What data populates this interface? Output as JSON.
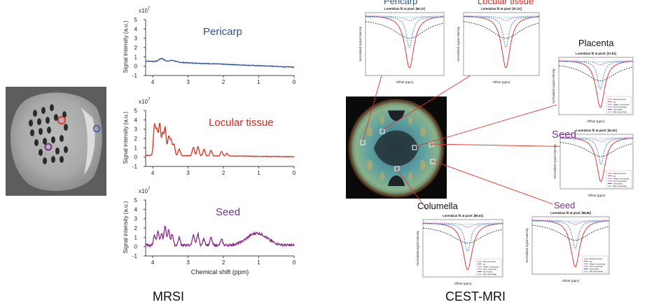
{
  "mrsi": {
    "caption": "MRSI",
    "image_markers": {
      "red": "#e8342c",
      "blue": "#3256a8",
      "purple": "#7a2f8f"
    },
    "spectra": [
      {
        "key": "pericarp",
        "label": "Pericarp",
        "color": "#2c4ea0",
        "label_color": "#2e5190",
        "ylabel": "Signal intensity (a.u.)",
        "exponent": "x10",
        "exponent_power": "7",
        "yticks": [
          "5",
          "4",
          "3",
          "2",
          "1",
          "0",
          "-1"
        ],
        "xticks": [
          "4",
          "3",
          "2",
          "1",
          "0"
        ]
      },
      {
        "key": "locular",
        "label": "Locular tissue",
        "color": "#e32b1e",
        "label_color": "#e3231a",
        "ylabel": "Signal intensity (a.u.)",
        "exponent": "x10",
        "exponent_power": "7",
        "yticks": [
          "5",
          "4",
          "3",
          "2",
          "1",
          "0",
          "-1"
        ],
        "xticks": [
          "4",
          "3",
          "2",
          "1",
          "0"
        ]
      },
      {
        "key": "seed",
        "label": "Seed",
        "color": "#8e2a8c",
        "label_color": "#7d2f93",
        "ylabel": "Signal intensity (a.u.)",
        "exponent": "x10",
        "exponent_power": "7",
        "yticks": [
          "5",
          "4",
          "3",
          "2",
          "1",
          "0",
          "-1"
        ],
        "xticks": [
          "4",
          "3",
          "2",
          "1",
          "0"
        ],
        "xlabel": "Chemical shift (ppm)"
      }
    ]
  },
  "cest": {
    "caption": "CEST-MRI",
    "region_labels": {
      "pericarp": "Pericarp",
      "locular": "Locular tissue",
      "placenta": "Placenta",
      "seed_right": "Seed",
      "columella": "Columella",
      "seed_bottom": "Seed"
    },
    "region_label_colors": {
      "pericarp": "#2e5190",
      "locular": "#e3231a",
      "placenta": "#111111",
      "seed_right": "#7d2f93",
      "columella": "#111111",
      "seed_bottom": "#7d2f93"
    },
    "z_plots": [
      {
        "key": "pericarp",
        "title": "Lorentzian fit at pixel: [66,13]",
        "legend": false
      },
      {
        "key": "locular",
        "title": "Lorentzian fit at pixel: [57,21]",
        "legend": false
      },
      {
        "key": "placenta",
        "title": "Lorentzian fit at pixel: [37,81]",
        "legend": true
      },
      {
        "key": "seed_right",
        "title": "Lorentzian fit at pixel: [62,91]",
        "legend": true
      },
      {
        "key": "columella",
        "title": "Lorentzian fit at pixel: [86,61]",
        "legend": true
      },
      {
        "key": "seed_bottom",
        "title": "Lorentzian fit at pixel: [88,86]",
        "legend": true
      }
    ],
    "z_xlabel": "Offset (ppm)",
    "z_ylabel": "Normalized signal intensity",
    "legend_items": [
      "Experimental",
      "Fit",
      "Water Lorentzian",
      "OH Lorentzian",
      "Semisolid",
      "NH Lorentzian"
    ],
    "legend_colors": [
      "#e74c3c",
      "#6b3fa0",
      "#4a6cf0",
      "#d13bd1",
      "#333333",
      "#3bb0b0"
    ]
  }
}
